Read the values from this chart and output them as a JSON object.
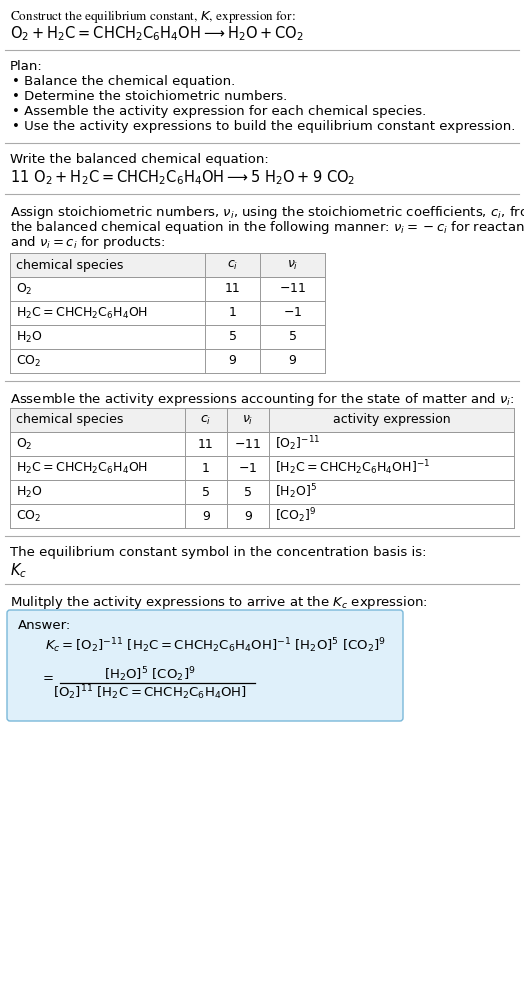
{
  "bg_color": "#ffffff",
  "text_color": "#000000",
  "title_line1": "Construct the equilibrium constant, $K$, expression for:",
  "title_line2": "$\\mathrm{O_2 + H_2C{=}CHCH_2C_6H_4OH \\longrightarrow H_2O + CO_2}$",
  "plan_header": "Plan:",
  "plan_items": [
    "\\bullet  Balance the chemical equation.",
    "\\bullet  Determine the stoichiometric numbers.",
    "\\bullet  Assemble the activity expression for each chemical species.",
    "\\bullet  Use the activity expressions to build the equilibrium constant expression."
  ],
  "balanced_header": "Write the balanced chemical equation:",
  "balanced_eq": "$\\mathrm{11\\ O_2 + H_2C{=}CHCH_2C_6H_4OH \\longrightarrow 5\\ H_2O + 9\\ CO_2}$",
  "stoich_lines": [
    "Assign stoichiometric numbers, $\\nu_i$, using the stoichiometric coefficients, $c_i$, from",
    "the balanced chemical equation in the following manner: $\\nu_i = -c_i$ for reactants",
    "and $\\nu_i = c_i$ for products:"
  ],
  "table1_cols": [
    "chemical species",
    "$c_i$",
    "$\\nu_i$"
  ],
  "table1_rows": [
    [
      "$\\mathrm{O_2}$",
      "11",
      "$-11$"
    ],
    [
      "$\\mathrm{H_2C{=}CHCH_2C_6H_4OH}$",
      "1",
      "$-1$"
    ],
    [
      "$\\mathrm{H_2O}$",
      "5",
      "5"
    ],
    [
      "$\\mathrm{CO_2}$",
      "9",
      "9"
    ]
  ],
  "activity_header": "Assemble the activity expressions accounting for the state of matter and $\\nu_i$:",
  "table2_cols": [
    "chemical species",
    "$c_i$",
    "$\\nu_i$",
    "activity expression"
  ],
  "table2_rows": [
    [
      "$\\mathrm{O_2}$",
      "11",
      "$-11$",
      "$[\\mathrm{O_2}]^{-11}$"
    ],
    [
      "$\\mathrm{H_2C{=}CHCH_2C_6H_4OH}$",
      "1",
      "$-1$",
      "$[\\mathrm{H_2C{=}CHCH_2C_6H_4OH}]^{-1}$"
    ],
    [
      "$\\mathrm{H_2O}$",
      "5",
      "5",
      "$[\\mathrm{H_2O}]^5$"
    ],
    [
      "$\\mathrm{CO_2}$",
      "9",
      "9",
      "$[\\mathrm{CO_2}]^9$"
    ]
  ],
  "kc_header": "The equilibrium constant symbol in the concentration basis is:",
  "kc_symbol": "$K_c$",
  "multiply_header": "Mulitply the activity expressions to arrive at the $K_c$ expression:",
  "answer_box_color": "#dff0fa",
  "answer_box_border": "#7ab8d9",
  "answer_label": "Answer:",
  "fs": 9.5,
  "fs_table": 9.0
}
